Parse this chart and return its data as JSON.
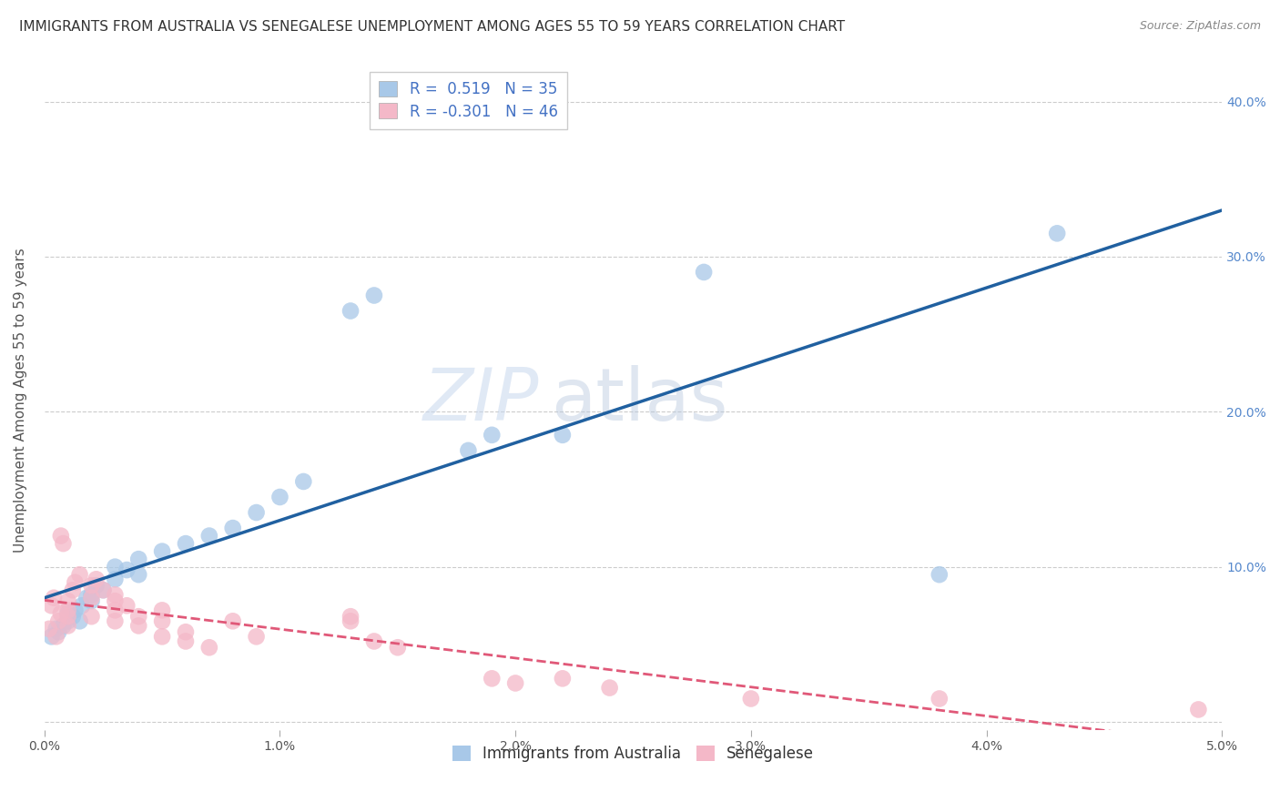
{
  "title": "IMMIGRANTS FROM AUSTRALIA VS SENEGALESE UNEMPLOYMENT AMONG AGES 55 TO 59 YEARS CORRELATION CHART",
  "source": "Source: ZipAtlas.com",
  "ylabel": "Unemployment Among Ages 55 to 59 years",
  "x_min": 0.0,
  "x_max": 0.05,
  "y_min": -0.005,
  "y_max": 0.42,
  "x_tick_labels": [
    "0.0%",
    "1.0%",
    "2.0%",
    "3.0%",
    "4.0%",
    "5.0%"
  ],
  "x_ticks": [
    0.0,
    0.01,
    0.02,
    0.03,
    0.04,
    0.05
  ],
  "y_tick_labels": [
    "",
    "10.0%",
    "20.0%",
    "30.0%",
    "40.0%"
  ],
  "y_ticks": [
    0.0,
    0.1,
    0.2,
    0.3,
    0.4
  ],
  "legend_blue_label": "Immigrants from Australia",
  "legend_pink_label": "Senegalese",
  "R_blue": "0.519",
  "N_blue": "35",
  "R_pink": "-0.301",
  "N_pink": "46",
  "blue_color": "#a8c8e8",
  "pink_color": "#f4b8c8",
  "blue_line_color": "#2060a0",
  "pink_line_color": "#e05878",
  "background_color": "#ffffff",
  "watermark_zip": "ZIP",
  "watermark_atlas": "atlas",
  "blue_scatter": [
    [
      0.0003,
      0.055
    ],
    [
      0.0005,
      0.06
    ],
    [
      0.0006,
      0.058
    ],
    [
      0.0008,
      0.062
    ],
    [
      0.001,
      0.065
    ],
    [
      0.001,
      0.07
    ],
    [
      0.0012,
      0.068
    ],
    [
      0.0013,
      0.072
    ],
    [
      0.0015,
      0.065
    ],
    [
      0.0016,
      0.075
    ],
    [
      0.0018,
      0.08
    ],
    [
      0.002,
      0.078
    ],
    [
      0.002,
      0.082
    ],
    [
      0.0022,
      0.088
    ],
    [
      0.0025,
      0.085
    ],
    [
      0.003,
      0.092
    ],
    [
      0.003,
      0.1
    ],
    [
      0.0035,
      0.098
    ],
    [
      0.004,
      0.095
    ],
    [
      0.004,
      0.105
    ],
    [
      0.005,
      0.11
    ],
    [
      0.006,
      0.115
    ],
    [
      0.007,
      0.12
    ],
    [
      0.008,
      0.125
    ],
    [
      0.009,
      0.135
    ],
    [
      0.01,
      0.145
    ],
    [
      0.011,
      0.155
    ],
    [
      0.013,
      0.265
    ],
    [
      0.014,
      0.275
    ],
    [
      0.018,
      0.175
    ],
    [
      0.019,
      0.185
    ],
    [
      0.022,
      0.185
    ],
    [
      0.028,
      0.29
    ],
    [
      0.038,
      0.095
    ],
    [
      0.043,
      0.315
    ]
  ],
  "pink_scatter": [
    [
      0.0002,
      0.06
    ],
    [
      0.0003,
      0.075
    ],
    [
      0.0004,
      0.08
    ],
    [
      0.0005,
      0.055
    ],
    [
      0.0006,
      0.065
    ],
    [
      0.0007,
      0.07
    ],
    [
      0.0007,
      0.12
    ],
    [
      0.0008,
      0.115
    ],
    [
      0.001,
      0.062
    ],
    [
      0.001,
      0.068
    ],
    [
      0.001,
      0.072
    ],
    [
      0.001,
      0.078
    ],
    [
      0.0012,
      0.085
    ],
    [
      0.0013,
      0.09
    ],
    [
      0.0015,
      0.095
    ],
    [
      0.002,
      0.08
    ],
    [
      0.002,
      0.088
    ],
    [
      0.002,
      0.068
    ],
    [
      0.0022,
      0.092
    ],
    [
      0.0025,
      0.085
    ],
    [
      0.003,
      0.078
    ],
    [
      0.003,
      0.082
    ],
    [
      0.003,
      0.072
    ],
    [
      0.003,
      0.065
    ],
    [
      0.0035,
      0.075
    ],
    [
      0.004,
      0.068
    ],
    [
      0.004,
      0.062
    ],
    [
      0.005,
      0.072
    ],
    [
      0.005,
      0.065
    ],
    [
      0.005,
      0.055
    ],
    [
      0.006,
      0.058
    ],
    [
      0.006,
      0.052
    ],
    [
      0.007,
      0.048
    ],
    [
      0.008,
      0.065
    ],
    [
      0.009,
      0.055
    ],
    [
      0.013,
      0.065
    ],
    [
      0.013,
      0.068
    ],
    [
      0.014,
      0.052
    ],
    [
      0.015,
      0.048
    ],
    [
      0.019,
      0.028
    ],
    [
      0.02,
      0.025
    ],
    [
      0.022,
      0.028
    ],
    [
      0.024,
      0.022
    ],
    [
      0.03,
      0.015
    ],
    [
      0.038,
      0.015
    ],
    [
      0.049,
      0.008
    ]
  ],
  "title_fontsize": 11,
  "axis_label_fontsize": 11,
  "tick_fontsize": 10,
  "legend_fontsize": 12,
  "source_fontsize": 9
}
